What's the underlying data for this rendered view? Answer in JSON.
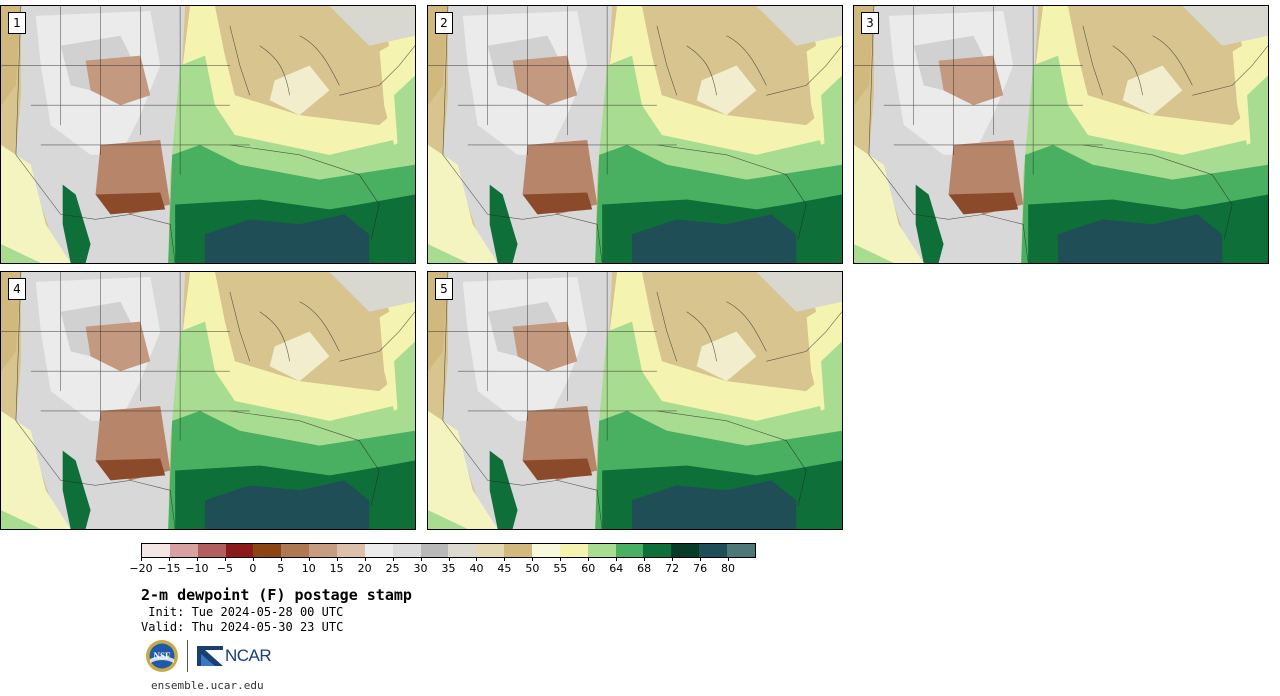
{
  "panels": [
    {
      "label": "1"
    },
    {
      "label": "2"
    },
    {
      "label": "3"
    },
    {
      "label": "4"
    },
    {
      "label": "5"
    }
  ],
  "colorbar": {
    "colors": [
      "#f5e6e6",
      "#d9a0a0",
      "#b35e5e",
      "#8b1a1a",
      "#8b4513",
      "#b07850",
      "#c89c80",
      "#dcc0aa",
      "#ececec",
      "#dcdcdc",
      "#b8b8b8",
      "#dcdad0",
      "#e4d8b0",
      "#d1b87c",
      "#f8f8dc",
      "#f4f4b0",
      "#a8dc90",
      "#48b060",
      "#0e7038",
      "#083c28",
      "#1e4e58",
      "#4e7878"
    ],
    "tick_labels": [
      "−20",
      "−15",
      "−10",
      "−5",
      "0",
      "5",
      "10",
      "15",
      "20",
      "25",
      "30",
      "35",
      "40",
      "45",
      "50",
      "55",
      "60",
      "64",
      "68",
      "72",
      "76",
      "80"
    ]
  },
  "title": "2-m dewpoint (F) postage stamp",
  "init": " Init: Tue 2024-05-28 00 UTC",
  "valid": "Valid: Thu 2024-05-30 23 UTC",
  "logos": {
    "nsf": "NSF",
    "ncar": "NCAR"
  },
  "url": "ensemble.ucar.edu"
}
